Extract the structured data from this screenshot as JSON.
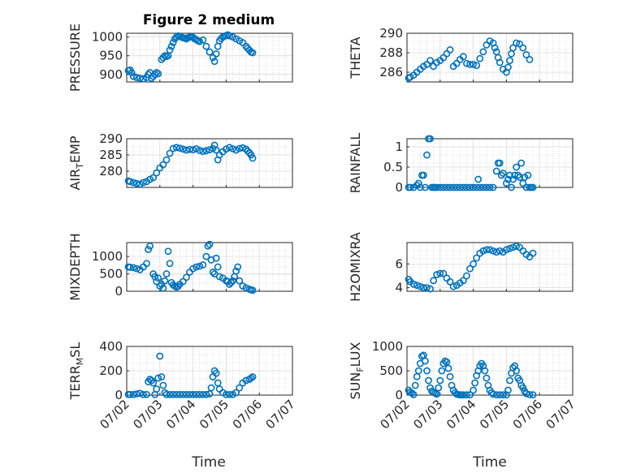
{
  "chart_data": [
    {
      "type": "scatter",
      "title": "Figure 2 medium",
      "ylabel": "PRESSURE",
      "ylim": [
        880,
        1010
      ],
      "yticks": [
        "900",
        "950",
        "1000"
      ],
      "xticks": [],
      "x": [
        0.05,
        0.1,
        0.15,
        0.2,
        0.3,
        0.4,
        0.5,
        0.6,
        0.65,
        0.7,
        0.75,
        0.8,
        0.85,
        0.9,
        0.95,
        1.05,
        1.1,
        1.15,
        1.2,
        1.25,
        1.3,
        1.35,
        1.4,
        1.45,
        1.5,
        1.55,
        1.6,
        1.65,
        1.7,
        1.75,
        1.8,
        1.85,
        1.9,
        1.95,
        2.0,
        2.05,
        2.1,
        2.15,
        2.2,
        2.3,
        2.4,
        2.5,
        2.6,
        2.65,
        2.7,
        2.75,
        2.8,
        2.85,
        2.9,
        2.95,
        3.0,
        3.05,
        3.1,
        3.2,
        3.3,
        3.4,
        3.5,
        3.6,
        3.65,
        3.7,
        3.75,
        3.8
      ],
      "y": [
        910,
        912,
        905,
        895,
        892,
        890,
        888,
        892,
        900,
        905,
        890,
        895,
        900,
        905,
        902,
        940,
        945,
        950,
        948,
        950,
        965,
        975,
        985,
        995,
        1000,
        1003,
        1002,
        1000,
        998,
        997,
        995,
        998,
        1000,
        1001,
        999,
        995,
        993,
        990,
        988,
        992,
        975,
        960,
        945,
        935,
        955,
        975,
        990,
        996,
        1000,
        1002,
        1004,
        1006,
        1003,
        1000,
        995,
        990,
        985,
        975,
        970,
        965,
        960,
        958
      ]
    },
    {
      "type": "scatter",
      "ylabel": "THETA",
      "ylim": [
        285,
        290
      ],
      "yticks": [
        "286",
        "288",
        "290"
      ],
      "xticks": [],
      "x": [
        0.05,
        0.1,
        0.2,
        0.3,
        0.4,
        0.5,
        0.6,
        0.7,
        0.8,
        0.9,
        1.0,
        1.1,
        1.2,
        1.3,
        1.4,
        1.5,
        1.6,
        1.7,
        1.8,
        1.9,
        2.0,
        2.1,
        2.2,
        2.3,
        2.4,
        2.5,
        2.6,
        2.65,
        2.7,
        2.75,
        2.8,
        2.9,
        3.0,
        3.05,
        3.1,
        3.15,
        3.2,
        3.3,
        3.4,
        3.5,
        3.6,
        3.7
      ],
      "y": [
        285.4,
        285.5,
        285.7,
        286.0,
        286.3,
        286.6,
        286.8,
        287.2,
        286.6,
        287.0,
        287.2,
        287.5,
        287.9,
        288.3,
        286.6,
        286.9,
        287.3,
        287.6,
        286.9,
        286.8,
        286.8,
        286.7,
        287.4,
        288.1,
        288.8,
        289.2,
        289.0,
        288.5,
        288.1,
        287.5,
        287.0,
        286.3,
        286.0,
        286.5,
        287.2,
        287.9,
        288.5,
        289.0,
        288.9,
        288.5,
        287.8,
        287.3
      ]
    },
    {
      "type": "scatter",
      "ylabel": "AIR_TEMP",
      "ylim": [
        275,
        290
      ],
      "yticks": [
        "280",
        "285",
        "290"
      ],
      "xticks": [],
      "x": [
        0.05,
        0.1,
        0.2,
        0.3,
        0.4,
        0.5,
        0.6,
        0.7,
        0.8,
        0.9,
        1.0,
        1.1,
        1.2,
        1.3,
        1.4,
        1.5,
        1.6,
        1.7,
        1.8,
        1.9,
        2.0,
        2.1,
        2.2,
        2.3,
        2.4,
        2.5,
        2.6,
        2.65,
        2.7,
        2.75,
        2.8,
        2.9,
        3.0,
        3.1,
        3.2,
        3.3,
        3.4,
        3.5,
        3.6,
        3.65,
        3.7,
        3.75,
        3.8
      ],
      "y": [
        277,
        276.8,
        276.5,
        276.2,
        276,
        276.5,
        276.8,
        277.5,
        278,
        279.5,
        281,
        282,
        283.5,
        285.5,
        287,
        287.3,
        287.1,
        286.8,
        286.5,
        286.7,
        286.6,
        286.9,
        286.4,
        286.1,
        286.3,
        286.6,
        287,
        288,
        286.5,
        283.5,
        285,
        286,
        286.8,
        287.3,
        286.9,
        286.5,
        287,
        287.2,
        286.8,
        286.2,
        285.7,
        285,
        284
      ]
    },
    {
      "type": "scatter",
      "ylabel": "RAINFALL",
      "ylim": [
        0,
        1.2
      ],
      "yticks": [
        "0",
        "0.5",
        "1"
      ],
      "xticks": [],
      "x": [
        0.05,
        0.1,
        0.2,
        0.3,
        0.35,
        0.4,
        0.45,
        0.5,
        0.55,
        0.6,
        0.65,
        0.7,
        0.75,
        0.8,
        0.85,
        0.9,
        1.0,
        1.1,
        1.2,
        1.3,
        1.4,
        1.5,
        1.6,
        1.7,
        1.8,
        1.9,
        2.0,
        2.1,
        2.15,
        2.2,
        2.3,
        2.4,
        2.5,
        2.6,
        2.7,
        2.75,
        2.8,
        2.85,
        2.9,
        3.0,
        3.05,
        3.1,
        3.15,
        3.2,
        3.25,
        3.3,
        3.35,
        3.4,
        3.45,
        3.5,
        3.55,
        3.6,
        3.65,
        3.7,
        3.75,
        3.8
      ],
      "y": [
        0,
        0,
        0,
        0.05,
        0.1,
        0,
        0.3,
        0.3,
        0,
        0.8,
        1.2,
        1.2,
        0,
        0,
        0,
        0,
        0,
        0,
        0,
        0,
        0,
        0,
        0,
        0,
        0,
        0,
        0,
        0,
        0.2,
        0,
        0,
        0,
        0,
        0,
        0.4,
        0.6,
        0.6,
        0.3,
        0.35,
        0.1,
        0.2,
        0.3,
        0,
        0.2,
        0.3,
        0.5,
        0.3,
        0.25,
        0.6,
        0.1,
        0.25,
        0,
        0.3,
        0,
        0,
        0
      ]
    },
    {
      "type": "scatter",
      "ylabel": "MIXDEPTH",
      "ylim": [
        0,
        1400
      ],
      "yticks": [
        "0",
        "500",
        "1000"
      ],
      "xticks": [],
      "x": [
        0.05,
        0.1,
        0.2,
        0.3,
        0.4,
        0.5,
        0.6,
        0.65,
        0.7,
        0.8,
        0.85,
        0.9,
        0.95,
        1.0,
        1.05,
        1.1,
        1.15,
        1.2,
        1.25,
        1.3,
        1.35,
        1.4,
        1.45,
        1.5,
        1.55,
        1.6,
        1.7,
        1.8,
        1.9,
        2.0,
        2.1,
        2.2,
        2.3,
        2.4,
        2.45,
        2.5,
        2.55,
        2.6,
        2.65,
        2.7,
        2.75,
        2.8,
        2.9,
        3.0,
        3.05,
        3.1,
        3.15,
        3.2,
        3.25,
        3.3,
        3.35,
        3.4,
        3.5,
        3.6,
        3.7,
        3.75,
        3.8
      ],
      "y": [
        700,
        690,
        680,
        650,
        620,
        700,
        800,
        1200,
        1300,
        500,
        420,
        280,
        380,
        150,
        200,
        90,
        300,
        500,
        1150,
        800,
        250,
        180,
        150,
        120,
        140,
        200,
        280,
        400,
        550,
        650,
        700,
        720,
        760,
        1000,
        1300,
        1350,
        900,
        550,
        500,
        950,
        700,
        420,
        380,
        300,
        280,
        200,
        250,
        300,
        420,
        580,
        700,
        300,
        150,
        100,
        60,
        40,
        30
      ]
    },
    {
      "type": "scatter",
      "ylabel": "H2OMIXRA",
      "ylim": [
        3.7,
        7.8
      ],
      "yticks": [
        "4",
        "6"
      ],
      "xticks": [],
      "x": [
        0.05,
        0.1,
        0.2,
        0.3,
        0.4,
        0.5,
        0.6,
        0.7,
        0.8,
        0.9,
        1.0,
        1.1,
        1.2,
        1.3,
        1.4,
        1.5,
        1.6,
        1.7,
        1.8,
        1.9,
        2.0,
        2.1,
        2.2,
        2.3,
        2.4,
        2.5,
        2.6,
        2.7,
        2.8,
        2.9,
        3.0,
        3.1,
        3.2,
        3.3,
        3.4,
        3.5,
        3.6,
        3.7,
        3.8
      ],
      "y": [
        4.7,
        4.5,
        4.3,
        4.2,
        4.1,
        4.0,
        4.0,
        3.9,
        4.6,
        5.1,
        5.2,
        5.2,
        4.8,
        4.5,
        4.1,
        4.2,
        4.4,
        4.6,
        5.0,
        5.6,
        6.0,
        6.5,
        6.9,
        7.1,
        7.2,
        7.2,
        7.1,
        7.0,
        7.1,
        7.0,
        7.2,
        7.3,
        7.4,
        7.5,
        7.4,
        7.1,
        6.8,
        6.6,
        6.9
      ]
    },
    {
      "type": "scatter",
      "ylabel": "TERR_MSL",
      "ylim": [
        0,
        400
      ],
      "yticks": [
        "0",
        "200",
        "400"
      ],
      "xticks": [
        "07/02",
        "07/03",
        "07/04",
        "07/05",
        "07/06",
        "07/07"
      ],
      "xlabel": "Time",
      "x": [
        0.05,
        0.1,
        0.2,
        0.3,
        0.4,
        0.5,
        0.6,
        0.65,
        0.7,
        0.75,
        0.8,
        0.85,
        0.9,
        0.95,
        1.0,
        1.05,
        1.1,
        1.15,
        1.2,
        1.3,
        1.4,
        1.5,
        1.6,
        1.7,
        1.8,
        1.9,
        2.0,
        2.1,
        2.2,
        2.3,
        2.4,
        2.5,
        2.55,
        2.6,
        2.65,
        2.7,
        2.75,
        2.8,
        2.9,
        3.0,
        3.1,
        3.2,
        3.3,
        3.4,
        3.5,
        3.6,
        3.7,
        3.75,
        3.8
      ],
      "y": [
        5,
        5,
        5,
        10,
        15,
        5,
        5,
        110,
        130,
        120,
        100,
        5,
        50,
        140,
        320,
        150,
        80,
        20,
        5,
        5,
        5,
        5,
        5,
        5,
        5,
        5,
        5,
        5,
        5,
        5,
        5,
        10,
        60,
        150,
        200,
        180,
        100,
        50,
        20,
        5,
        5,
        5,
        20,
        60,
        100,
        120,
        130,
        140,
        150
      ]
    },
    {
      "type": "scatter",
      "ylabel": "SUN_FLUX",
      "ylim": [
        0,
        1000
      ],
      "yticks": [
        "0",
        "500",
        "1000"
      ],
      "xticks": [
        "07/02",
        "07/03",
        "07/04",
        "07/05",
        "07/06",
        "07/07"
      ],
      "xlabel": "Time",
      "x": [
        0.05,
        0.1,
        0.15,
        0.2,
        0.25,
        0.3,
        0.35,
        0.4,
        0.45,
        0.5,
        0.55,
        0.6,
        0.65,
        0.7,
        0.75,
        0.8,
        0.85,
        0.9,
        0.95,
        1.0,
        1.05,
        1.1,
        1.15,
        1.2,
        1.25,
        1.3,
        1.35,
        1.4,
        1.45,
        1.5,
        1.55,
        1.6,
        1.65,
        1.7,
        1.8,
        1.9,
        2.0,
        2.05,
        2.1,
        2.15,
        2.2,
        2.25,
        2.3,
        2.35,
        2.4,
        2.45,
        2.5,
        2.55,
        2.6,
        2.7,
        2.8,
        2.9,
        3.0,
        3.05,
        3.1,
        3.15,
        3.2,
        3.25,
        3.3,
        3.35,
        3.4,
        3.45,
        3.5,
        3.55,
        3.6,
        3.7,
        3.8
      ],
      "y": [
        100,
        60,
        40,
        10,
        200,
        380,
        500,
        650,
        800,
        820,
        700,
        500,
        300,
        150,
        80,
        60,
        40,
        20,
        150,
        300,
        500,
        650,
        700,
        680,
        550,
        380,
        200,
        100,
        50,
        20,
        10,
        5,
        5,
        5,
        5,
        5,
        100,
        250,
        400,
        500,
        600,
        650,
        600,
        500,
        350,
        200,
        100,
        50,
        20,
        5,
        5,
        5,
        5,
        100,
        300,
        450,
        560,
        600,
        500,
        350,
        300,
        200,
        150,
        80,
        30,
        10,
        5
      ]
    }
  ]
}
